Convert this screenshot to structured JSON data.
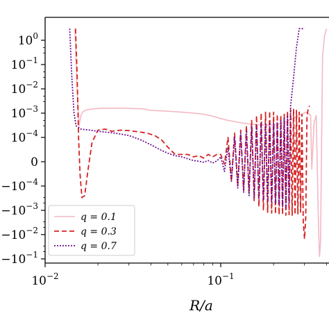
{
  "chart_data": {
    "type": "line",
    "title": "",
    "xlabel": "R/a",
    "ylabel": "",
    "xscale": "log",
    "yscale": "symlog",
    "xlim": [
      0.01,
      0.42
    ],
    "x_ticks": [
      {
        "value": 0.01,
        "base": "10",
        "exp": "−2"
      },
      {
        "value": 0.1,
        "base": "10",
        "exp": "−1"
      }
    ],
    "y_ticks": [
      {
        "value": 1,
        "base": "10",
        "exp": "0"
      },
      {
        "value": 0.1,
        "base": "10",
        "exp": "−1"
      },
      {
        "value": 0.01,
        "base": "10",
        "exp": "−2"
      },
      {
        "value": 0.001,
        "base": "10",
        "exp": "−3"
      },
      {
        "value": 0.0001,
        "base": "10",
        "exp": "−4"
      },
      {
        "value": 0,
        "base": "0",
        "exp": ""
      },
      {
        "value": -0.0001,
        "base": "10",
        "exp": "−4"
      },
      {
        "value": -0.001,
        "base": "10",
        "exp": "−3"
      },
      {
        "value": -0.01,
        "base": "10",
        "exp": "−2"
      },
      {
        "value": -0.1,
        "base": "10",
        "exp": "−1"
      }
    ],
    "legend": {
      "position": "lower-left",
      "entries": [
        "q = 0.1",
        "q = 0.3",
        "q = 0.7"
      ]
    },
    "grid": false,
    "series": [
      {
        "name": "q = 0.1",
        "color": "#f4b8c4",
        "dash": "solid",
        "x": [
          0.0148,
          0.0152,
          0.0156,
          0.016,
          0.0165,
          0.0175,
          0.019,
          0.021,
          0.024,
          0.028,
          0.032,
          0.036,
          0.04,
          0.05,
          0.06,
          0.07,
          0.08,
          0.09,
          0.1,
          0.11,
          0.12,
          0.13,
          0.15,
          0.17,
          0.19,
          0.21,
          0.23,
          0.25,
          0.27,
          0.29,
          0.305,
          0.315,
          0.325,
          0.33,
          0.34,
          0.35,
          0.36,
          0.365,
          0.37,
          0.38,
          0.39,
          0.4
        ],
        "y": [
          3,
          0.01,
          0.0003,
          0.0008,
          0.0012,
          0.0014,
          0.0015,
          0.0016,
          0.0016,
          0.0016,
          0.00155,
          0.0015,
          0.0013,
          0.0012,
          0.0011,
          0.001,
          0.0009,
          0.00075,
          0.0006,
          0.0005,
          0.00045,
          0.0004,
          0.00035,
          0.00033,
          0.00032,
          0.00035,
          0.0004,
          0.00055,
          0.0007,
          0.0009,
          0.0011,
          0.001,
          0.0008,
          -3e-05,
          0.0004,
          0.0008,
          -0.003,
          -0.08,
          -0.02,
          0.2,
          1.5,
          3
        ]
      },
      {
        "name": "q = 0.3",
        "color": "#d62020",
        "dash": "7,4",
        "x": [
          0.0149,
          0.0152,
          0.0155,
          0.0158,
          0.0162,
          0.0168,
          0.0175,
          0.0185,
          0.02,
          0.022,
          0.024,
          0.027,
          0.03,
          0.034,
          0.038,
          0.042,
          0.046,
          0.05,
          0.055,
          0.06,
          0.065,
          0.07,
          0.075,
          0.08,
          0.085,
          0.09,
          0.095,
          0.1,
          0.105,
          0.11,
          0.115,
          0.12,
          0.125,
          0.13,
          0.135,
          0.14,
          0.145,
          0.15,
          0.155,
          0.16,
          0.165,
          0.17,
          0.175,
          0.18,
          0.185,
          0.19,
          0.195,
          0.2,
          0.205,
          0.21,
          0.215,
          0.22,
          0.225,
          0.23,
          0.235,
          0.24,
          0.245,
          0.25,
          0.255,
          0.26,
          0.265,
          0.27,
          0.275,
          0.28,
          0.285,
          0.29,
          0.295,
          0.3,
          0.305,
          0.31,
          0.315,
          0.32
        ],
        "y": [
          3,
          0.05,
          0.0001,
          -5e-05,
          -0.0003,
          -0.00025,
          -4e-05,
          8e-05,
          0.0002,
          0.00022,
          0.00018,
          0.0002,
          0.00019,
          0.00017,
          0.00015,
          0.00012,
          9e-05,
          6e-05,
          3e-05,
          3e-05,
          3e-05,
          2e-05,
          2.5e-05,
          1.5e-05,
          3e-05,
          2e-05,
          3e-05,
          3e-05,
          -1e-05,
          0.0001,
          -8e-05,
          0.00015,
          -0.0001,
          0.0002,
          -0.00015,
          0.0003,
          -0.0002,
          0.0005,
          -0.0004,
          0.0008,
          -0.0007,
          0.001,
          -0.001,
          0.0011,
          -0.0012,
          0.0012,
          -0.0013,
          0.0011,
          -0.0014,
          0.0009,
          -0.0015,
          0.0008,
          -0.0015,
          0.0009,
          -0.0016,
          0.0012,
          -0.0015,
          0.0014,
          -0.0016,
          0.0015,
          -0.0015,
          0.0013,
          -0.0014,
          0.0011,
          -0.0012,
          0.0009,
          -0.003,
          -0.015,
          -0.002,
          0.0008,
          0.0015,
          0.002
        ]
      },
      {
        "name": "q = 0.7",
        "color": "#6a0d91",
        "dash": "2,2",
        "x": [
          0.0138,
          0.0142,
          0.0146,
          0.015,
          0.016,
          0.018,
          0.02,
          0.025,
          0.03,
          0.035,
          0.04,
          0.045,
          0.05,
          0.055,
          0.06,
          0.065,
          0.07,
          0.075,
          0.08,
          0.085,
          0.09,
          0.095,
          0.1,
          0.105,
          0.11,
          0.115,
          0.12,
          0.125,
          0.13,
          0.135,
          0.14,
          0.145,
          0.15,
          0.155,
          0.16,
          0.165,
          0.17,
          0.175,
          0.18,
          0.185,
          0.19,
          0.195,
          0.2,
          0.205,
          0.21,
          0.215,
          0.22,
          0.225,
          0.23,
          0.235,
          0.24,
          0.245,
          0.25,
          0.26,
          0.27,
          0.28,
          0.29,
          0.3
        ],
        "y": [
          3,
          0.03,
          0.001,
          0.0003,
          0.00022,
          0.0002,
          0.00018,
          0.00015,
          0.00012,
          9e-05,
          7e-05,
          5e-05,
          3.5e-05,
          2.5e-05,
          2e-05,
          1.2e-05,
          5e-06,
          2e-06,
          -2e-06,
          5e-06,
          -5e-06,
          3e-06,
          2e-05,
          -4e-05,
          6e-05,
          -8e-05,
          0.0001,
          -0.00012,
          0.00015,
          -0.00018,
          0.0002,
          -0.00025,
          0.0003,
          -0.0003,
          0.0003,
          -0.00032,
          0.0004,
          -0.0004,
          0.0004,
          -0.00045,
          0.0004,
          -0.0005,
          0.0004,
          -0.0005,
          0.0004,
          -0.0006,
          0.0005,
          -0.0007,
          0.0006,
          -0.0008,
          0.0008,
          -0.0005,
          0.002,
          0.03,
          0.5,
          3,
          3,
          3
        ]
      }
    ]
  }
}
